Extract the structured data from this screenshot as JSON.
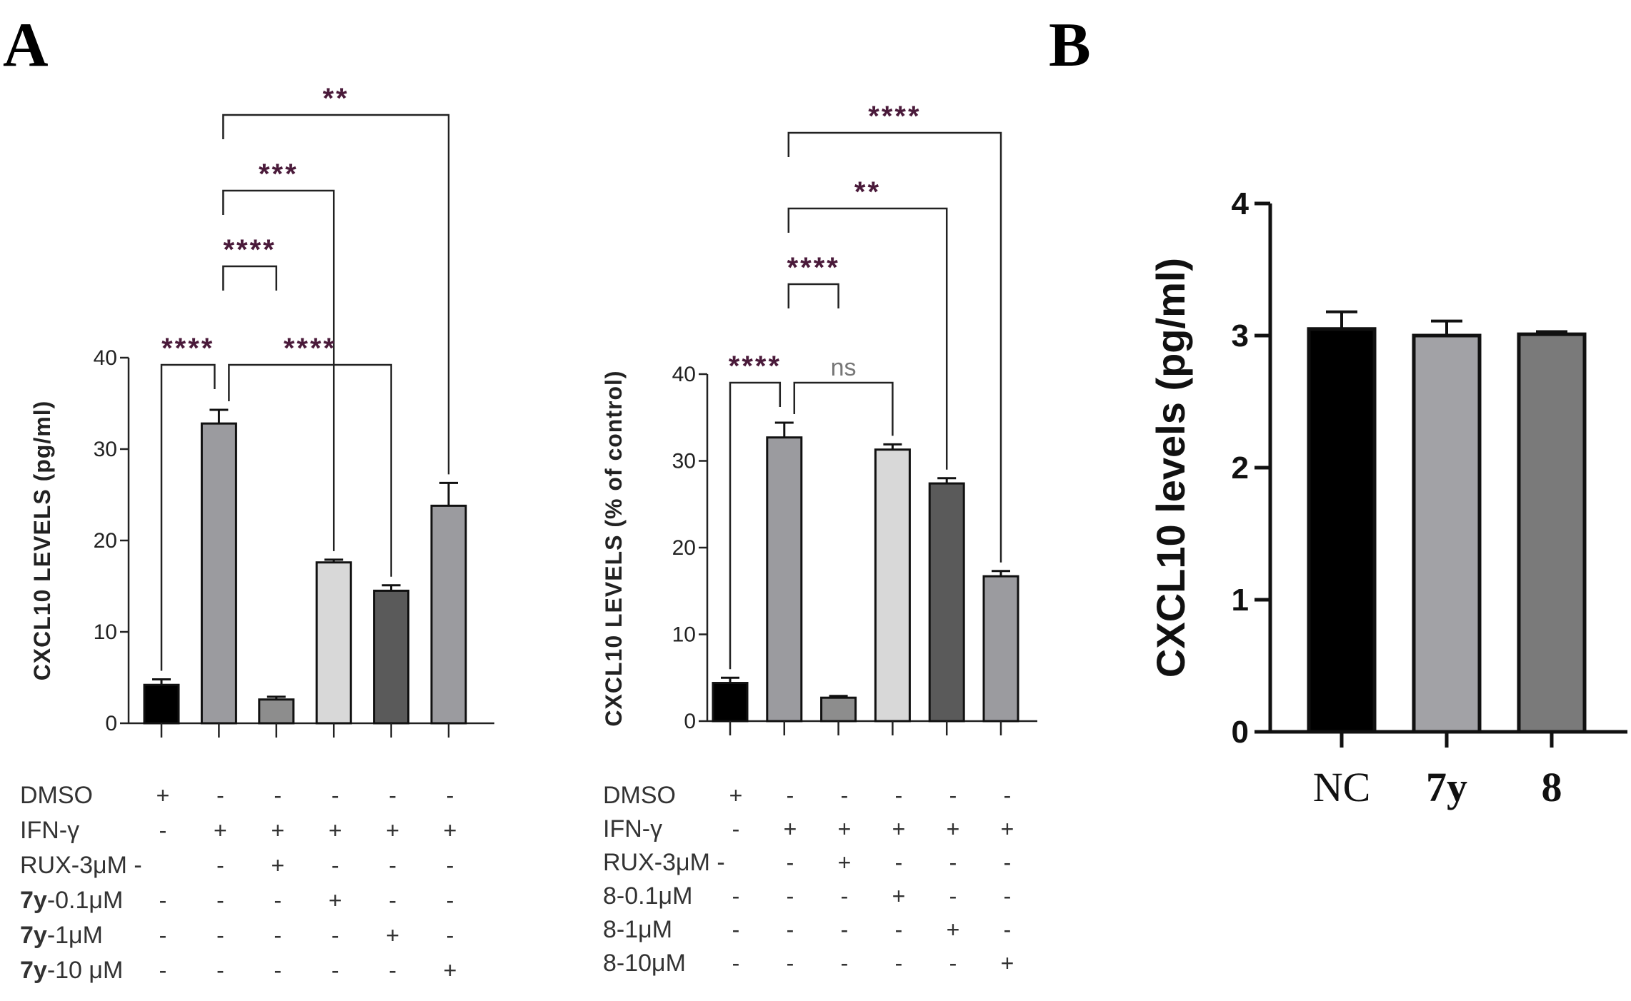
{
  "panels": {
    "a_letter": "A",
    "b_letter": "B"
  },
  "chart_data": [
    {
      "type": "bar",
      "panel": "A-left",
      "ylabel": "CXCL10   LEVELS (pg/ml)",
      "ylim": [
        0,
        40
      ],
      "yticks": [
        "0",
        "10",
        "20",
        "30",
        "40"
      ],
      "bars": [
        {
          "value": 4.2,
          "error": 0.6,
          "color": "#000000"
        },
        {
          "value": 32.8,
          "error": 1.5,
          "color": "#9b9b9f"
        },
        {
          "value": 2.6,
          "error": 0.3,
          "color": "#8d8d8d"
        },
        {
          "value": 17.6,
          "error": 0.3,
          "color": "#d8d8d8"
        },
        {
          "value": 14.5,
          "error": 0.6,
          "color": "#5a5a5a"
        },
        {
          "value": 23.8,
          "error": 2.5,
          "color": "#9b9b9f"
        }
      ],
      "significance": [
        {
          "from": 0,
          "to": 1,
          "label": "****",
          "level": 0
        },
        {
          "from": 1,
          "to": 2,
          "label": "****",
          "level": 2
        },
        {
          "from": 1,
          "to": 3,
          "label": "***",
          "level": 3
        },
        {
          "from": 1,
          "to": 4,
          "label": "****",
          "level": 0
        },
        {
          "from": 1,
          "to": 5,
          "label": "**",
          "level": 4
        }
      ],
      "conditions": [
        {
          "prefix": "",
          "label": "DMSO",
          "signs": [
            "+",
            "-",
            "-",
            "-",
            "-",
            "-"
          ]
        },
        {
          "prefix": "",
          "label": "IFN-γ",
          "signs": [
            "-",
            "+",
            "+",
            "+",
            "+",
            "+"
          ]
        },
        {
          "prefix": "",
          "label": "RUX-3μM -",
          "signs": [
            "",
            "-",
            "+",
            "-",
            "-",
            "-"
          ]
        },
        {
          "prefix": "7y",
          "label": "-0.1μM",
          "signs": [
            "-",
            "-",
            "-",
            "+",
            "-",
            "-"
          ]
        },
        {
          "prefix": "7y",
          "label": "-1μM",
          "signs": [
            "-",
            "-",
            "-",
            "-",
            "+",
            "-"
          ]
        },
        {
          "prefix": "7y",
          "label": "-10 μM",
          "signs": [
            "-",
            "-",
            "-",
            "-",
            "-",
            "+"
          ]
        }
      ]
    },
    {
      "type": "bar",
      "panel": "A-right",
      "ylabel": "CXCL10   LEVELS (%  of control)",
      "ylim": [
        0,
        40
      ],
      "yticks": [
        "0",
        "10",
        "20",
        "30",
        "40"
      ],
      "bars": [
        {
          "value": 4.4,
          "error": 0.6,
          "color": "#000000"
        },
        {
          "value": 32.7,
          "error": 1.7,
          "color": "#9b9b9f"
        },
        {
          "value": 2.7,
          "error": 0.2,
          "color": "#8d8d8d"
        },
        {
          "value": 31.3,
          "error": 0.6,
          "color": "#d8d8d8"
        },
        {
          "value": 27.4,
          "error": 0.6,
          "color": "#5a5a5a"
        },
        {
          "value": 16.7,
          "error": 0.6,
          "color": "#9b9b9f"
        }
      ],
      "significance": [
        {
          "from": 0,
          "to": 1,
          "label": "****",
          "level": 0
        },
        {
          "from": 1,
          "to": 3,
          "label": "ns",
          "level": 0
        },
        {
          "from": 1,
          "to": 2,
          "label": "****",
          "level": 2
        },
        {
          "from": 1,
          "to": 4,
          "label": "**",
          "level": 3
        },
        {
          "from": 1,
          "to": 5,
          "label": "****",
          "level": 4
        }
      ],
      "conditions": [
        {
          "prefix": "",
          "label": "DMSO",
          "signs": [
            "+",
            "-",
            "-",
            "-",
            "-",
            "-"
          ]
        },
        {
          "prefix": "",
          "label": "IFN-γ",
          "signs": [
            "-",
            "+",
            "+",
            "+",
            "+",
            "+"
          ]
        },
        {
          "prefix": "",
          "label": "RUX-3μM -",
          "signs": [
            "",
            "-",
            "+",
            "-",
            "-",
            "-"
          ]
        },
        {
          "prefix": "",
          "label": "8-0.1μM",
          "signs": [
            "-",
            "-",
            "-",
            "+",
            "-",
            "-"
          ]
        },
        {
          "prefix": "",
          "label": "8-1μM",
          "signs": [
            "-",
            "-",
            "-",
            "-",
            "+",
            "-"
          ]
        },
        {
          "prefix": "",
          "label": "8-10μM",
          "signs": [
            "-",
            "-",
            "-",
            "-",
            "-",
            "+"
          ]
        }
      ]
    },
    {
      "type": "bar",
      "panel": "B",
      "ylabel": "CXCL10 levels (pg/ml)",
      "ylim": [
        0,
        4
      ],
      "yticks": [
        "0",
        "1",
        "2",
        "3",
        "4"
      ],
      "categories": [
        "NC",
        "7y",
        "8"
      ],
      "bars": [
        {
          "value": 3.05,
          "error": 0.13,
          "color": "#000000"
        },
        {
          "value": 3.0,
          "error": 0.11,
          "color": "#a2a2a6"
        },
        {
          "value": 3.01,
          "error": 0.02,
          "color": "#7a7a7a"
        }
      ]
    }
  ]
}
